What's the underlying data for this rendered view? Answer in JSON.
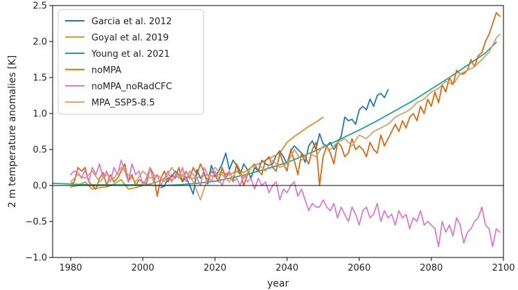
{
  "chart_data": {
    "type": "line",
    "xlabel": "year",
    "ylabel": "2 m temperature anomalies [K]",
    "xlim": [
      1975,
      2100
    ],
    "ylim": [
      -1.0,
      2.5
    ],
    "xticks": [
      1980,
      2000,
      2020,
      2040,
      2060,
      2080,
      2100
    ],
    "yticks": [
      -1.0,
      -0.5,
      0.0,
      0.5,
      1.0,
      1.5,
      2.0,
      2.5
    ],
    "xtick_labels": [
      "1980",
      "2000",
      "2020",
      "2040",
      "2060",
      "2080",
      "2100"
    ],
    "ytick_labels": [
      "−1.0",
      "−0.5",
      "0.0",
      "0.5",
      "1.0",
      "1.5",
      "2.0",
      "2.5"
    ],
    "reference_line": 0.0,
    "legend_position": "top-left",
    "series": [
      {
        "name": "Garcia et al. 2012",
        "color": "#1f77b4",
        "x": [
          2005,
          2006,
          2007,
          2008,
          2009,
          2010,
          2011,
          2012,
          2013,
          2014,
          2015,
          2016,
          2017,
          2018,
          2019,
          2020,
          2021,
          2022,
          2023,
          2024,
          2025,
          2026,
          2027,
          2028,
          2029,
          2030,
          2031,
          2032,
          2033,
          2034,
          2035,
          2036,
          2037,
          2038,
          2039,
          2040,
          2041,
          2042,
          2043,
          2044,
          2045,
          2046,
          2047,
          2048,
          2049,
          2050,
          2051,
          2052,
          2053,
          2054,
          2055,
          2056,
          2057,
          2058,
          2059,
          2060,
          2061,
          2062,
          2063,
          2064,
          2065,
          2066,
          2067,
          2068
        ],
        "y": [
          -0.03,
          -0.01,
          0.1,
          0.12,
          0.2,
          0.15,
          0.05,
          0.12,
          0.0,
          -0.12,
          0.22,
          0.1,
          0.18,
          0.02,
          0.28,
          0.12,
          0.2,
          0.3,
          0.45,
          0.22,
          0.35,
          0.28,
          0.15,
          0.3,
          0.22,
          0.1,
          0.25,
          0.2,
          0.35,
          0.3,
          0.28,
          0.3,
          0.42,
          0.48,
          0.4,
          0.3,
          0.48,
          0.55,
          0.5,
          0.45,
          0.32,
          0.55,
          0.62,
          0.5,
          0.72,
          0.58,
          0.55,
          0.6,
          0.5,
          0.6,
          0.68,
          0.95,
          0.9,
          0.92,
          0.85,
          1.05,
          1.1,
          1.05,
          1.2,
          1.1,
          1.25,
          1.28,
          1.22,
          1.33
        ]
      },
      {
        "name": "Goyal et al. 2019",
        "color": "#d4901f",
        "x": [
          1980,
          1982,
          1984,
          1986,
          1988,
          1990,
          1992,
          1994,
          1996,
          1998,
          2000,
          2002,
          2004,
          2006,
          2008,
          2010,
          2012,
          2014,
          2016,
          2018,
          2020,
          2022,
          2024,
          2026,
          2028,
          2030,
          2032,
          2034,
          2036,
          2038,
          2040,
          2042,
          2044,
          2046,
          2048,
          2050
        ],
        "y": [
          -0.02,
          0.0,
          0.05,
          -0.05,
          -0.03,
          -0.02,
          0.02,
          0.08,
          -0.05,
          -0.03,
          0.0,
          0.02,
          0.05,
          0.1,
          0.08,
          0.15,
          0.12,
          0.1,
          0.12,
          0.15,
          0.12,
          0.18,
          0.15,
          0.2,
          0.18,
          0.25,
          0.3,
          0.35,
          0.4,
          0.45,
          0.6,
          0.68,
          0.75,
          0.82,
          0.88,
          0.95
        ]
      },
      {
        "name": "Young et al. 2021",
        "color": "#1aa589",
        "x": [
          1975,
          1980,
          1985,
          1990,
          1995,
          2000,
          2005,
          2010,
          2015,
          2020,
          2025,
          2030,
          2035,
          2040,
          2045,
          2050,
          2055,
          2060,
          2065,
          2070,
          2075,
          2080,
          2085,
          2090,
          2095,
          2098
        ],
        "y": [
          0.03,
          0.02,
          0.01,
          0.01,
          0.01,
          0.01,
          0.0,
          0.01,
          0.03,
          0.06,
          0.11,
          0.17,
          0.24,
          0.32,
          0.42,
          0.53,
          0.65,
          0.77,
          0.9,
          1.04,
          1.18,
          1.34,
          1.5,
          1.67,
          1.84,
          1.99
        ]
      },
      {
        "name": "noMPA",
        "color": "#d5690f",
        "x": [
          1980,
          1981,
          1982,
          1983,
          1984,
          1985,
          1986,
          1987,
          1988,
          1989,
          1990,
          1991,
          1992,
          1993,
          1994,
          1995,
          1996,
          1997,
          1998,
          1999,
          2000,
          2001,
          2002,
          2003,
          2004,
          2005,
          2006,
          2007,
          2008,
          2009,
          2010,
          2011,
          2012,
          2013,
          2014,
          2015,
          2016,
          2017,
          2018,
          2019,
          2020,
          2021,
          2022,
          2023,
          2024,
          2025,
          2026,
          2027,
          2028,
          2029,
          2030,
          2031,
          2032,
          2033,
          2034,
          2035,
          2036,
          2037,
          2038,
          2039,
          2040,
          2041,
          2042,
          2043,
          2044,
          2045,
          2046,
          2047,
          2048,
          2049,
          2050,
          2051,
          2052,
          2053,
          2054,
          2055,
          2056,
          2057,
          2058,
          2059,
          2060,
          2061,
          2062,
          2063,
          2064,
          2065,
          2066,
          2067,
          2068,
          2069,
          2070,
          2071,
          2072,
          2073,
          2074,
          2075,
          2076,
          2077,
          2078,
          2079,
          2080,
          2081,
          2082,
          2083,
          2084,
          2085,
          2086,
          2087,
          2088,
          2089,
          2090,
          2091,
          2092,
          2093,
          2094,
          2095,
          2096,
          2097,
          2098,
          2099
        ],
        "y": [
          0.02,
          0.05,
          0.25,
          0.2,
          0.25,
          0.05,
          0.0,
          -0.05,
          0.1,
          0.18,
          0.0,
          0.15,
          0.05,
          0.1,
          0.2,
          0.3,
          0.05,
          0.15,
          0.0,
          0.08,
          0.05,
          0.02,
          0.25,
          0.15,
          -0.15,
          0.1,
          0.2,
          0.05,
          0.15,
          0.1,
          0.25,
          0.05,
          0.2,
          0.1,
          0.25,
          0.15,
          0.3,
          0.18,
          0.05,
          0.2,
          0.15,
          0.05,
          0.25,
          0.1,
          0.2,
          0.05,
          0.3,
          0.2,
          0.0,
          0.15,
          0.25,
          0.3,
          0.2,
          0.15,
          0.35,
          0.4,
          0.25,
          0.2,
          0.45,
          0.3,
          0.2,
          0.5,
          0.35,
          0.15,
          0.45,
          0.4,
          0.3,
          0.5,
          0.6,
          0.0,
          0.4,
          0.55,
          0.45,
          0.3,
          0.6,
          0.55,
          0.4,
          0.45,
          0.65,
          0.5,
          0.55,
          0.5,
          0.4,
          0.6,
          0.5,
          0.45,
          0.7,
          0.55,
          0.65,
          0.75,
          0.85,
          0.75,
          0.9,
          0.8,
          0.95,
          1.0,
          0.9,
          1.1,
          1.0,
          1.2,
          1.1,
          1.3,
          1.15,
          1.4,
          1.3,
          1.5,
          1.4,
          1.6,
          1.55,
          1.55,
          1.6,
          1.75,
          1.65,
          1.8,
          1.85,
          2.0,
          2.1,
          2.25,
          2.4,
          2.35
        ]
      },
      {
        "name": "noMPA_noRadCFC",
        "color": "#d97ad1",
        "x": [
          1980,
          1981,
          1982,
          1983,
          1984,
          1985,
          1986,
          1987,
          1988,
          1989,
          1990,
          1991,
          1992,
          1993,
          1994,
          1995,
          1996,
          1997,
          1998,
          1999,
          2000,
          2001,
          2002,
          2003,
          2004,
          2005,
          2006,
          2007,
          2008,
          2009,
          2010,
          2011,
          2012,
          2013,
          2014,
          2015,
          2016,
          2017,
          2018,
          2019,
          2020,
          2021,
          2022,
          2023,
          2024,
          2025,
          2026,
          2027,
          2028,
          2029,
          2030,
          2031,
          2032,
          2033,
          2034,
          2035,
          2036,
          2037,
          2038,
          2039,
          2040,
          2041,
          2042,
          2043,
          2044,
          2045,
          2046,
          2047,
          2048,
          2049,
          2050,
          2051,
          2052,
          2053,
          2054,
          2055,
          2056,
          2057,
          2058,
          2059,
          2060,
          2061,
          2062,
          2063,
          2064,
          2065,
          2066,
          2067,
          2068,
          2069,
          2070,
          2071,
          2072,
          2073,
          2074,
          2075,
          2076,
          2077,
          2078,
          2079,
          2080,
          2081,
          2082,
          2083,
          2084,
          2085,
          2086,
          2087,
          2088,
          2089,
          2090,
          2091,
          2092,
          2093,
          2094,
          2095,
          2096,
          2097,
          2098,
          2099
        ],
        "y": [
          0.15,
          0.2,
          0.18,
          0.1,
          0.22,
          0.05,
          0.25,
          0.15,
          0.3,
          0.1,
          0.2,
          0.05,
          0.25,
          0.15,
          0.35,
          0.2,
          0.05,
          0.3,
          0.15,
          0.2,
          0.0,
          0.1,
          0.25,
          0.05,
          0.15,
          0.0,
          0.1,
          0.2,
          0.05,
          0.15,
          0.1,
          0.25,
          0.05,
          0.2,
          0.15,
          0.1,
          0.0,
          0.25,
          0.15,
          0.05,
          0.2,
          0.1,
          0.0,
          0.15,
          0.2,
          0.05,
          0.1,
          0.0,
          0.15,
          0.05,
          0.1,
          -0.05,
          0.1,
          0.0,
          0.05,
          -0.1,
          0.0,
          0.05,
          -0.2,
          -0.05,
          -0.1,
          0.0,
          0.05,
          -0.15,
          -0.05,
          -0.2,
          -0.35,
          -0.25,
          -0.3,
          -0.3,
          -0.2,
          -0.3,
          -0.35,
          -0.25,
          -0.45,
          -0.3,
          -0.4,
          -0.5,
          -0.3,
          -0.4,
          -0.55,
          -0.35,
          -0.3,
          -0.45,
          -0.4,
          -0.25,
          -0.5,
          -0.35,
          -0.45,
          -0.4,
          -0.55,
          -0.35,
          -0.45,
          -0.4,
          -0.6,
          -0.45,
          -0.5,
          -0.35,
          -0.55,
          -0.5,
          -0.55,
          -0.6,
          -0.85,
          -0.5,
          -0.65,
          -0.55,
          -0.7,
          -0.45,
          -0.55,
          -0.8,
          -0.65,
          -0.6,
          -0.5,
          -0.45,
          -0.3,
          -0.55,
          -0.6,
          -0.85,
          -0.6,
          -0.65
        ]
      },
      {
        "name": "MPA_SSP5-8.5",
        "color": "#d2a06a",
        "x": [
          1980,
          1982,
          1984,
          1986,
          1988,
          1990,
          1992,
          1994,
          1996,
          1998,
          2000,
          2002,
          2004,
          2006,
          2008,
          2010,
          2012,
          2014,
          2016,
          2018,
          2020,
          2022,
          2024,
          2026,
          2028,
          2030,
          2032,
          2034,
          2036,
          2038,
          2040,
          2042,
          2044,
          2046,
          2048,
          2050,
          2052,
          2054,
          2056,
          2058,
          2060,
          2062,
          2064,
          2066,
          2068,
          2070,
          2072,
          2074,
          2076,
          2078,
          2080,
          2082,
          2084,
          2086,
          2088,
          2090,
          2092,
          2094,
          2096,
          2098,
          2099
        ],
        "y": [
          0.05,
          0.15,
          0.1,
          0.2,
          0.05,
          0.15,
          0.1,
          0.25,
          0.15,
          0.05,
          0.2,
          0.1,
          0.15,
          0.05,
          0.25,
          0.1,
          0.2,
          0.05,
          -0.2,
          0.1,
          0.25,
          0.15,
          0.05,
          0.2,
          0.1,
          0.25,
          0.3,
          0.2,
          0.35,
          0.25,
          0.3,
          0.5,
          0.35,
          0.45,
          0.4,
          0.55,
          0.5,
          0.6,
          0.65,
          0.55,
          0.7,
          0.65,
          0.75,
          0.8,
          0.85,
          0.95,
          1.0,
          1.05,
          1.15,
          1.2,
          1.3,
          1.35,
          1.45,
          1.4,
          1.55,
          1.6,
          1.65,
          1.75,
          1.85,
          2.05,
          2.1
        ]
      }
    ]
  }
}
